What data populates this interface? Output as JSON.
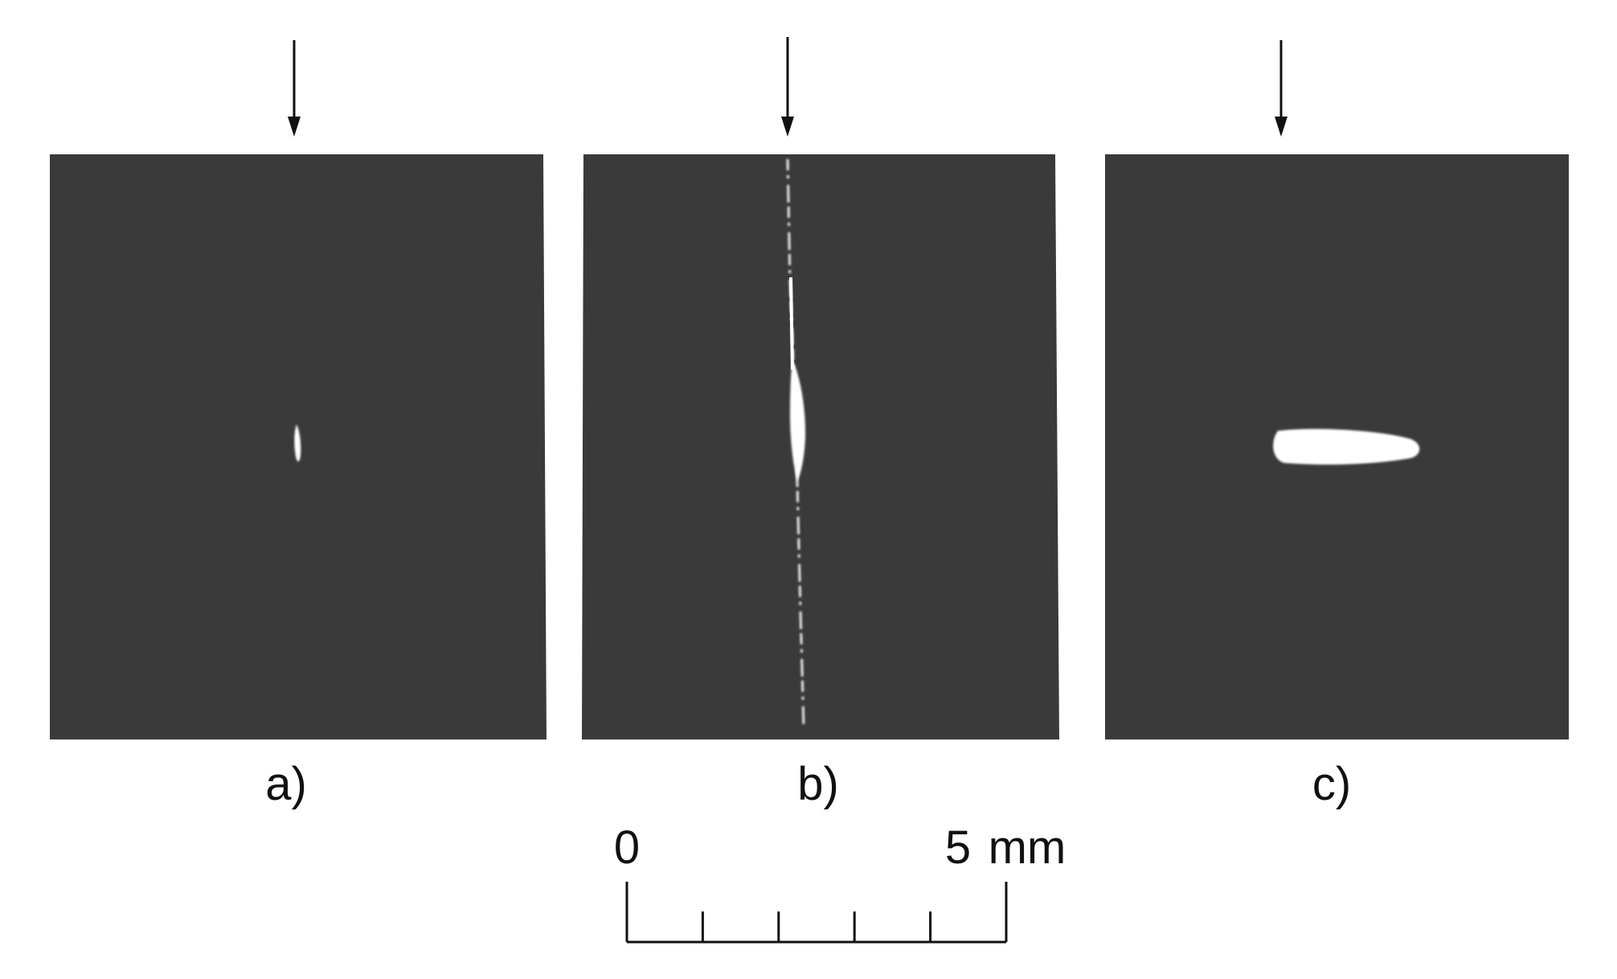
{
  "figure": {
    "background_color": "#ffffff",
    "panel_color": "#3a3a3a",
    "defect_color": "#ffffff",
    "arrow_color": "#111111",
    "panels": [
      {
        "label": "a)",
        "defect": "small-vertical-spot"
      },
      {
        "label": "b)",
        "defect": "vertical-crack-line"
      },
      {
        "label": "c)",
        "defect": "horizontal-elongated-blob"
      }
    ],
    "scale_bar": {
      "start_label": "0",
      "end_value": "5",
      "unit": "mm",
      "divisions": 5
    }
  }
}
